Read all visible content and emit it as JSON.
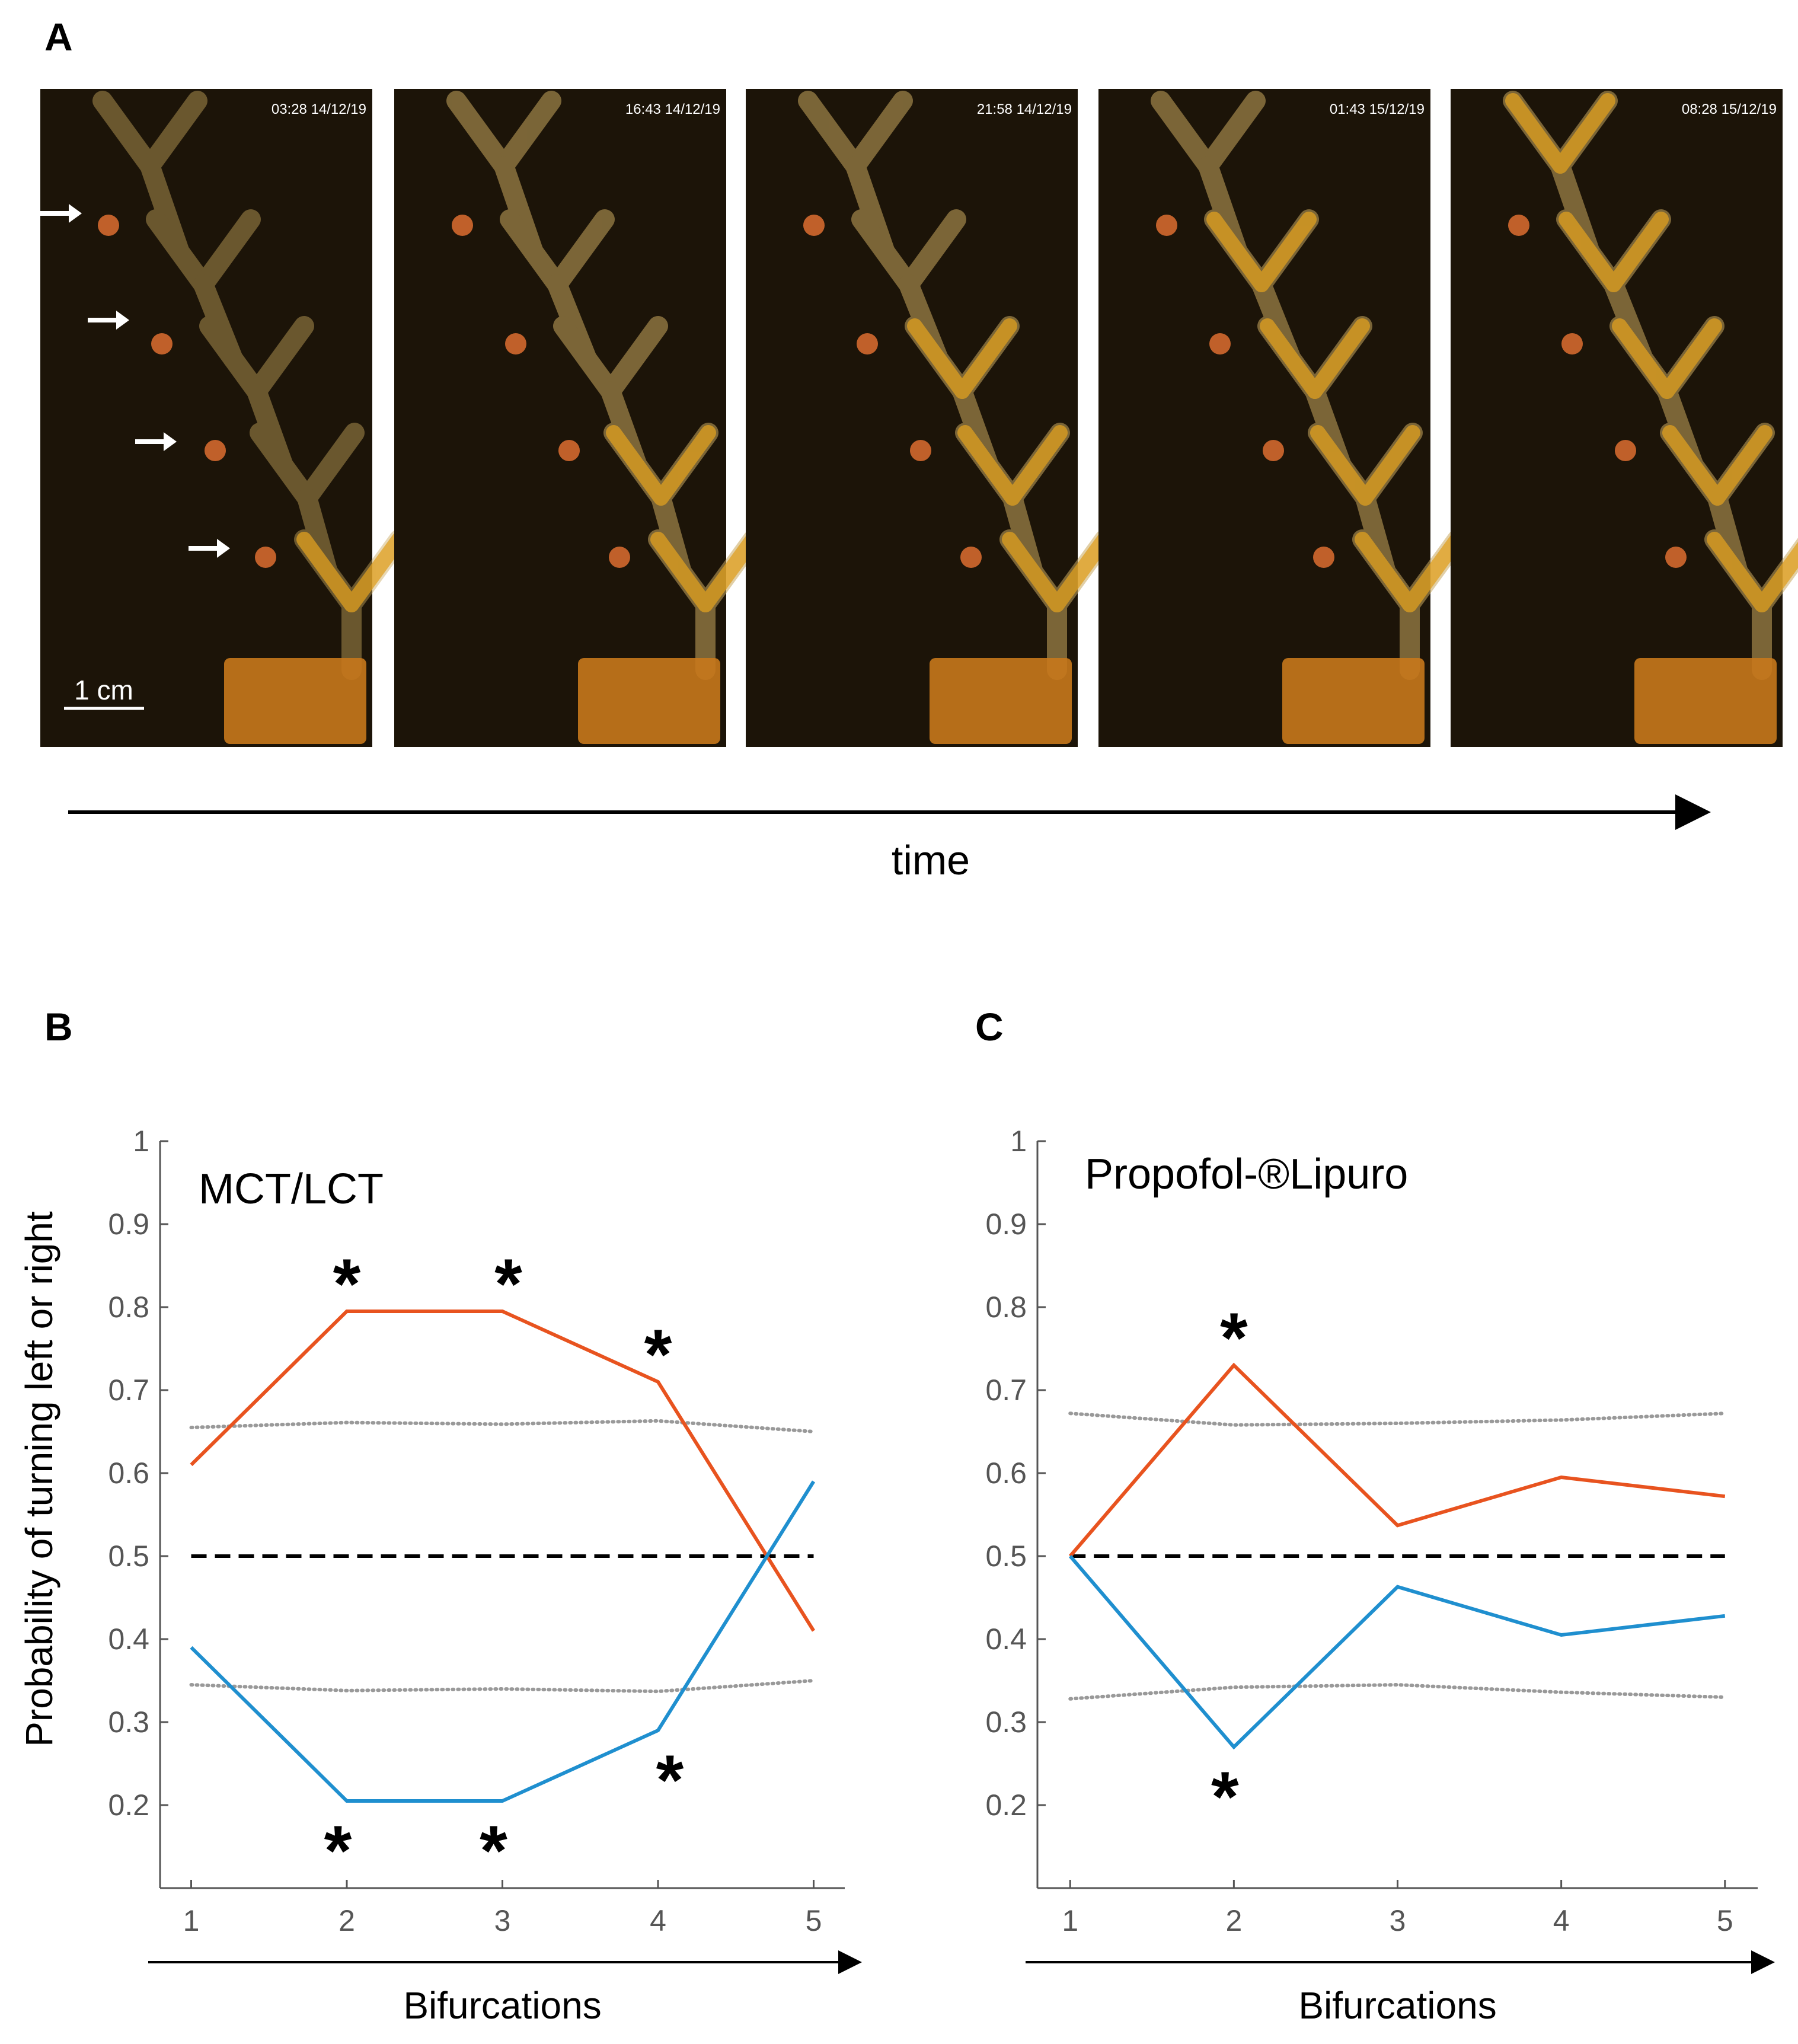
{
  "panels": {
    "a": "A",
    "b": "B",
    "c": "C"
  },
  "photos": {
    "timestamps": [
      "03:28 14/12/19",
      "16:43 14/12/19",
      "21:58 14/12/19",
      "01:43 15/12/19",
      "08:28 15/12/19"
    ],
    "scale_bar": "1 cm",
    "time_label": "time",
    "colors": {
      "background": "#1c1408",
      "channel": "#c9a85e",
      "slime": "#e0a020"
    }
  },
  "chart_data": [
    {
      "type": "line",
      "title": "MCT/LCT",
      "xlabel": "Bifurcations",
      "ylabel": "Probability of turning  left or right",
      "x": [
        1,
        2,
        3,
        4,
        5
      ],
      "xlim": [
        0.8,
        5.2
      ],
      "ylim": [
        0.1,
        1
      ],
      "yticks": [
        "0.2",
        "0.3",
        "0.4",
        "0.5",
        "0.6",
        "0.7",
        "0.8",
        "0.9",
        "1"
      ],
      "xticks": [
        "1",
        "2",
        "3",
        "4",
        "5"
      ],
      "series": [
        {
          "values": [
            0.61,
            0.795,
            0.795,
            0.71,
            0.41
          ],
          "color": "#e8531f"
        },
        {
          "values": [
            0.39,
            0.205,
            0.205,
            0.29,
            0.59
          ],
          "color": "#1f8fcf"
        }
      ],
      "reference": {
        "y": 0.5,
        "style": "dashed",
        "color": "#000000"
      },
      "confidence_bounds": {
        "upper": [
          0.655,
          0.661,
          0.659,
          0.663,
          0.65
        ],
        "lower": [
          0.345,
          0.338,
          0.34,
          0.337,
          0.35
        ],
        "style": "dotted",
        "color": "#999999"
      },
      "significance_marker": "*",
      "significant_upper": [
        2,
        3,
        4
      ],
      "significant_lower": [
        2,
        3,
        4
      ]
    },
    {
      "type": "line",
      "title": "Propofol-®Lipuro",
      "xlabel": "Bifurcations",
      "ylabel": "",
      "x": [
        1,
        2,
        3,
        4,
        5
      ],
      "xlim": [
        0.8,
        5.2
      ],
      "ylim": [
        0.1,
        1
      ],
      "yticks": [
        "0.2",
        "0.3",
        "0.4",
        "0.5",
        "0.6",
        "0.7",
        "0.8",
        "0.9",
        "1"
      ],
      "xticks": [
        "1",
        "2",
        "3",
        "4",
        "5"
      ],
      "series": [
        {
          "values": [
            0.5,
            0.73,
            0.537,
            0.595,
            0.572
          ],
          "color": "#e8531f"
        },
        {
          "values": [
            0.5,
            0.27,
            0.463,
            0.405,
            0.428
          ],
          "color": "#1f8fcf"
        }
      ],
      "reference": {
        "y": 0.5,
        "style": "dashed",
        "color": "#000000"
      },
      "confidence_bounds": {
        "upper": [
          0.672,
          0.658,
          0.66,
          0.664,
          0.672
        ],
        "lower": [
          0.328,
          0.342,
          0.345,
          0.336,
          0.33
        ],
        "style": "dotted",
        "color": "#999999"
      },
      "significance_marker": "*",
      "significant_upper": [
        2
      ],
      "significant_lower": [
        2
      ]
    }
  ]
}
